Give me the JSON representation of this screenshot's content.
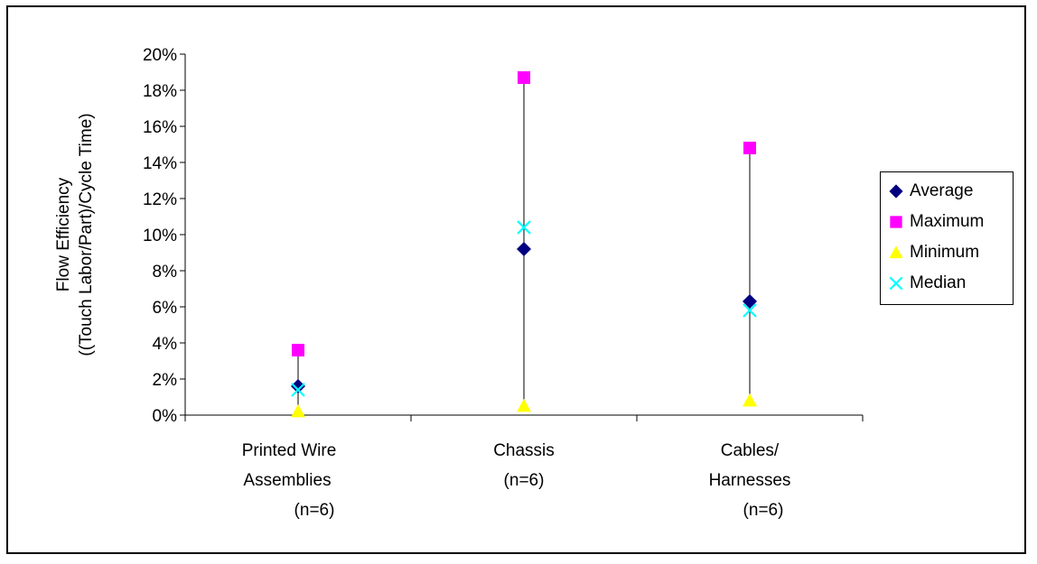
{
  "chart_data": {
    "type": "scatter",
    "title": "",
    "xlabel": "",
    "ylabel_lines": [
      "Flow Efficiency",
      "((Touch Labor/Part)/Cycle Time)"
    ],
    "ylim": [
      0,
      0.2
    ],
    "yticks": [
      "0%",
      "2%",
      "4%",
      "6%",
      "8%",
      "10%",
      "12%",
      "14%",
      "16%",
      "18%",
      "20%"
    ],
    "categories": [
      {
        "lines": [
          "Printed Wire",
          "Assemblies",
          "(n=6)"
        ]
      },
      {
        "lines": [
          "Chassis",
          "(n=6)"
        ]
      },
      {
        "lines": [
          "Cables/",
          "Harnesses",
          "(n=6)"
        ]
      }
    ],
    "series": [
      {
        "name": "Average",
        "marker": "diamond",
        "color": "#000080",
        "values": [
          0.016,
          0.092,
          0.063
        ]
      },
      {
        "name": "Maximum",
        "marker": "square",
        "color": "#FF00FF",
        "values": [
          0.036,
          0.187,
          0.148
        ]
      },
      {
        "name": "Minimum",
        "marker": "triangle",
        "color": "#FFFF00",
        "values": [
          0.002,
          0.005,
          0.008
        ]
      },
      {
        "name": "Median",
        "marker": "x",
        "color": "#00FFFF",
        "values": [
          0.014,
          0.104,
          0.058
        ]
      }
    ],
    "grid": false,
    "legend_position": "right",
    "range_lines": true
  }
}
